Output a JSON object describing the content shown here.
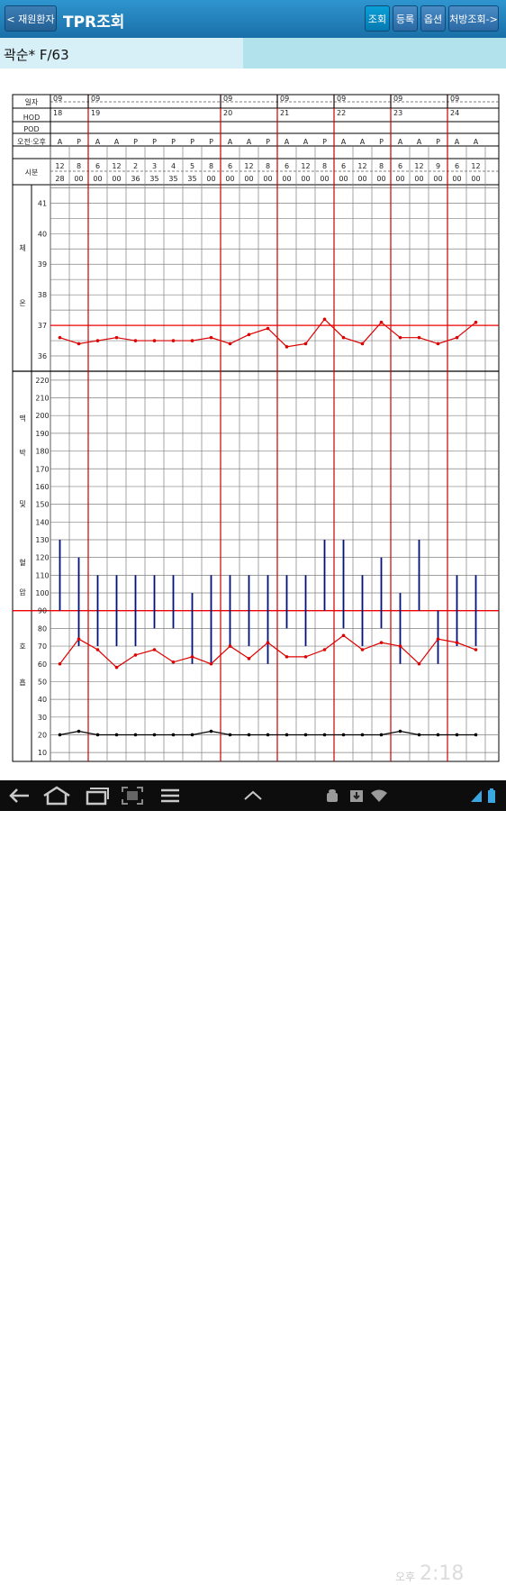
{
  "header": {
    "back_label": "< 재원환자",
    "title": "TPR조회",
    "search_label": "조회",
    "register_label": "등록",
    "options_label": "옵션",
    "rx_label": "처방조회->"
  },
  "patient": {
    "name": "곽순* F/63"
  },
  "table": {
    "row_labels": {
      "date": "일자",
      "hod": "HOD",
      "pod": "POD",
      "ampm": "오전·오후",
      "time": "시분"
    },
    "day_groups": [
      {
        "month": "09",
        "day": "18"
      },
      {
        "month": "09",
        "day": "19"
      },
      {
        "month": "09",
        "day": "20"
      },
      {
        "month": "09",
        "day": "21"
      },
      {
        "month": "09",
        "day": "22"
      },
      {
        "month": "09",
        "day": "23"
      },
      {
        "month": "09",
        "day": "24"
      }
    ],
    "columns": [
      {
        "ap": "A",
        "h": "12",
        "m": "28"
      },
      {
        "ap": "P",
        "h": "8",
        "m": "00"
      },
      {
        "ap": "A",
        "h": "6",
        "m": "00"
      },
      {
        "ap": "A",
        "h": "12",
        "m": "00"
      },
      {
        "ap": "P",
        "h": "2",
        "m": "36"
      },
      {
        "ap": "P",
        "h": "3",
        "m": "35"
      },
      {
        "ap": "P",
        "h": "4",
        "m": "35"
      },
      {
        "ap": "P",
        "h": "5",
        "m": "35"
      },
      {
        "ap": "P",
        "h": "8",
        "m": "00"
      },
      {
        "ap": "A",
        "h": "6",
        "m": "00"
      },
      {
        "ap": "A",
        "h": "12",
        "m": "00"
      },
      {
        "ap": "P",
        "h": "8",
        "m": "00"
      },
      {
        "ap": "A",
        "h": "6",
        "m": "00"
      },
      {
        "ap": "A",
        "h": "12",
        "m": "00"
      },
      {
        "ap": "P",
        "h": "8",
        "m": "00"
      },
      {
        "ap": "A",
        "h": "6",
        "m": "00"
      },
      {
        "ap": "A",
        "h": "12",
        "m": "00"
      },
      {
        "ap": "P",
        "h": "8",
        "m": "00"
      },
      {
        "ap": "A",
        "h": "6",
        "m": "00"
      },
      {
        "ap": "A",
        "h": "12",
        "m": "00"
      },
      {
        "ap": "P",
        "h": "9",
        "m": "00"
      },
      {
        "ap": "A",
        "h": "6",
        "m": "00"
      },
      {
        "ap": "A",
        "h": "12",
        "m": "00"
      }
    ]
  },
  "chart_data": {
    "type": "line",
    "temperature": {
      "axis_label": [
        "체",
        "온"
      ],
      "ticks": [
        36,
        37,
        38,
        39,
        40,
        41
      ],
      "ylim": [
        35.5,
        41.6
      ],
      "reference": 37,
      "values": [
        36.6,
        36.4,
        36.5,
        36.6,
        36.5,
        36.5,
        36.5,
        36.5,
        36.6,
        36.4,
        36.7,
        36.9,
        36.3,
        36.4,
        37.2,
        36.6,
        36.4,
        37.1,
        36.6,
        36.6,
        36.4,
        36.6,
        37.1
      ]
    },
    "vitals": {
      "axis_label": [
        "맥",
        "박",
        "및",
        "혈",
        "압",
        "호",
        "흡"
      ],
      "ticks": [
        10,
        20,
        30,
        40,
        50,
        60,
        70,
        80,
        90,
        100,
        110,
        120,
        130,
        140,
        150,
        160,
        170,
        180,
        190,
        200,
        210,
        220
      ],
      "ylim": [
        5,
        225
      ],
      "reference": 90,
      "pulse": [
        60,
        74,
        68,
        58,
        65,
        68,
        61,
        64,
        60,
        70,
        63,
        72,
        64,
        64,
        68,
        76,
        68,
        72,
        70,
        60,
        74,
        72,
        68
      ],
      "respiration": [
        20,
        22,
        20,
        20,
        20,
        20,
        20,
        20,
        22,
        20,
        20,
        20,
        20,
        20,
        20,
        20,
        20,
        20,
        22,
        20,
        20,
        20,
        20
      ],
      "blood_pressure": [
        [
          90,
          130
        ],
        [
          70,
          120
        ],
        [
          70,
          110
        ],
        [
          70,
          110
        ],
        [
          70,
          110
        ],
        [
          80,
          110
        ],
        [
          80,
          110
        ],
        [
          60,
          100
        ],
        [
          60,
          110
        ],
        [
          70,
          110
        ],
        [
          70,
          110
        ],
        [
          60,
          110
        ],
        [
          80,
          110
        ],
        [
          70,
          110
        ],
        [
          90,
          130
        ],
        [
          80,
          130
        ],
        [
          70,
          110
        ],
        [
          80,
          120
        ],
        [
          60,
          100
        ],
        [
          90,
          130
        ],
        [
          60,
          90
        ],
        [
          70,
          110
        ],
        [
          70,
          110
        ]
      ]
    }
  },
  "statusbar": {
    "ampm": "오후",
    "time": "2:18"
  },
  "colors": {
    "grid": "#808080",
    "separator": "#cc0000",
    "reference": "#ee0000",
    "temperature": "#dd0000",
    "pulse": "#dd0000",
    "blood_pressure": "#00127a",
    "respiration": "#000000"
  }
}
